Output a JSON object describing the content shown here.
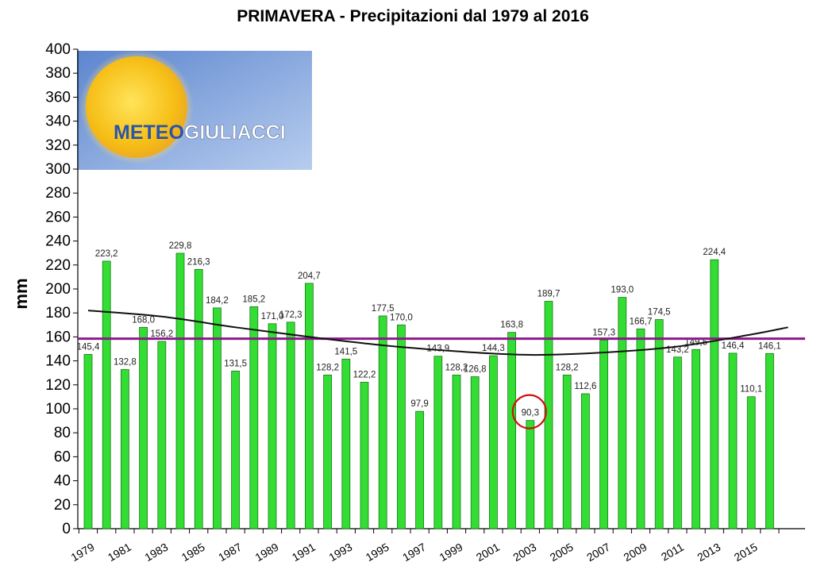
{
  "chart_data": {
    "type": "bar",
    "title": "PRIMAVERA - Precipitazioni dal 1979 al 2016",
    "ylabel": "mm",
    "xlabel": "",
    "ylim": [
      0,
      400
    ],
    "ytick_step": 20,
    "grid": false,
    "categories": [
      "1979",
      "1980",
      "1981",
      "1982",
      "1983",
      "1984",
      "1985",
      "1986",
      "1987",
      "1988",
      "1989",
      "1990",
      "1991",
      "1992",
      "1993",
      "1994",
      "1995",
      "1996",
      "1997",
      "1998",
      "1999",
      "2000",
      "2001",
      "2002",
      "2003",
      "2004",
      "2005",
      "2006",
      "2007",
      "2008",
      "2009",
      "2010",
      "2011",
      "2012",
      "2013",
      "2014",
      "2015",
      "2016"
    ],
    "x_tick_labels": [
      "1979",
      "1981",
      "1983",
      "1985",
      "1987",
      "1989",
      "1991",
      "1993",
      "1995",
      "1997",
      "1999",
      "2001",
      "2003",
      "2005",
      "2007",
      "2009",
      "2011",
      "2013",
      "2015"
    ],
    "values": [
      145.4,
      223.2,
      132.8,
      168.0,
      156.2,
      229.8,
      216.3,
      184.2,
      131.5,
      185.2,
      171.0,
      172.3,
      204.7,
      128.2,
      141.5,
      122.2,
      177.5,
      170.0,
      97.9,
      143.9,
      128.2,
      126.8,
      144.3,
      163.8,
      90.3,
      189.7,
      128.2,
      112.6,
      157.3,
      193.0,
      166.7,
      174.5,
      143.2,
      149.5,
      224.4,
      146.4,
      110.1,
      146.1
    ],
    "value_labels": [
      "145,4",
      "223,2",
      "132,8",
      "168,0",
      "156,2",
      "229,8",
      "216,3",
      "184,2",
      "131,5",
      "185,2",
      "171,0",
      "172,3",
      "204,7",
      "128,2",
      "141,5",
      "122,2",
      "177,5",
      "170,0",
      "97,9",
      "143,9",
      "128,2",
      "126,8",
      "144,3",
      "163,8",
      "90,3",
      "189,7",
      "128,2",
      "112,6",
      "157,3",
      "193,0",
      "166,7",
      "174,5",
      "143,2",
      "149,5",
      "224,4",
      "146,4",
      "110,1",
      "146,1"
    ],
    "mean_line": {
      "value": 158.5,
      "color": "#8b1a8b"
    },
    "trend_line": {
      "color": "#111111",
      "points": [
        [
          1979,
          182
        ],
        [
          1983,
          177
        ],
        [
          1987,
          168
        ],
        [
          1991,
          160
        ],
        [
          1995,
          153
        ],
        [
          1999,
          148
        ],
        [
          2003,
          145
        ],
        [
          2007,
          147
        ],
        [
          2011,
          152
        ],
        [
          2015,
          162
        ],
        [
          2017,
          168
        ]
      ]
    },
    "highlight": {
      "category": "2003",
      "color": "#cc1111"
    },
    "bar_color": "#33dd33",
    "bar_stroke": "#1a7a1a"
  },
  "logo": {
    "text_a": "METEO",
    "text_b": "GIULIACCI",
    "color_a": "#2a55a8",
    "color_b": "#ffffff",
    "bg_color": "#7a9fd8",
    "sun_color": "#f7c51f"
  }
}
